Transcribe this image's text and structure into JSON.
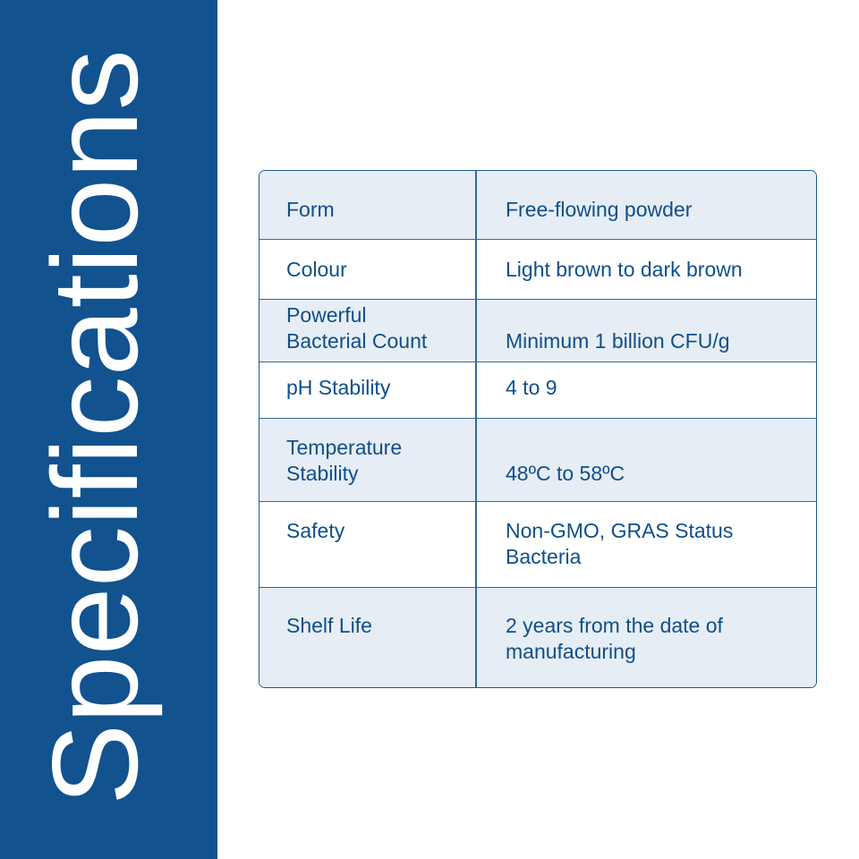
{
  "sidebar": {
    "title": "Specifications"
  },
  "colors": {
    "brand_blue": "#11528f",
    "row_shade": "#e6edf4",
    "text": "#0f4f8c"
  },
  "specs": [
    {
      "label": "Form",
      "value": "Free-flowing powder"
    },
    {
      "label": "Colour",
      "value": "Light brown to dark brown"
    },
    {
      "label": "Powerful\nBacterial Count",
      "value": "Minimum 1 billion CFU/g"
    },
    {
      "label": "pH Stability",
      "value": "4 to 9"
    },
    {
      "label": "Temperature\nStability",
      "value": "48ºC to 58ºC"
    },
    {
      "label": "Safety",
      "value": "Non-GMO, GRAS Status\nBacteria"
    },
    {
      "label": "Shelf Life",
      "value": "2 years from the date of\nmanufacturing"
    }
  ]
}
